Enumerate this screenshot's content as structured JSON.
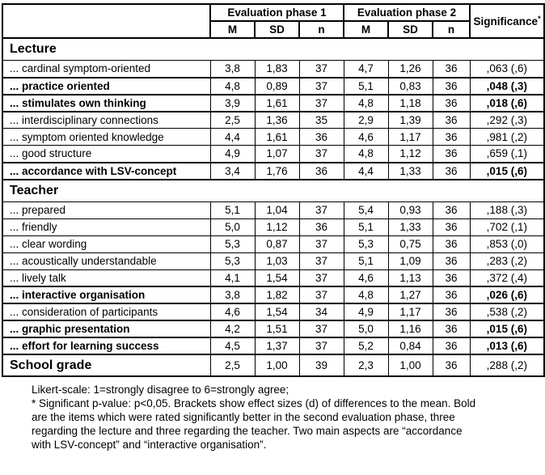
{
  "table": {
    "header": {
      "phase1": "Evaluation phase 1",
      "phase2": "Evaluation phase 2",
      "significance": "Significance",
      "significance_sup": "*",
      "subcols": [
        "M",
        "SD",
        "n",
        "M",
        "SD",
        "n"
      ]
    },
    "sections": [
      {
        "title": "Lecture",
        "rows": [
          {
            "label": "... cardinal symptom-oriented",
            "m1": "3,8",
            "sd1": "1,83",
            "n1": "37",
            "m2": "4,7",
            "sd2": "1,26",
            "n2": "36",
            "sig": ",063 (,6)",
            "bold": false
          },
          {
            "label": "... practice oriented",
            "m1": "4,8",
            "sd1": "0,89",
            "n1": "37",
            "m2": "5,1",
            "sd2": "0,83",
            "n2": "36",
            "sig": ",048 (,3)",
            "bold": true
          },
          {
            "label": "... stimulates own thinking",
            "m1": "3,9",
            "sd1": "1,61",
            "n1": "37",
            "m2": "4,8",
            "sd2": "1,18",
            "n2": "36",
            "sig": ",018 (,6)",
            "bold": true
          },
          {
            "label": "... interdisciplinary connections",
            "m1": "2,5",
            "sd1": "1,36",
            "n1": "35",
            "m2": "2,9",
            "sd2": "1,39",
            "n2": "36",
            "sig": ",292 (,3)",
            "bold": false
          },
          {
            "label": "... symptom oriented knowledge",
            "m1": "4,4",
            "sd1": "1,61",
            "n1": "36",
            "m2": "4,6",
            "sd2": "1,17",
            "n2": "36",
            "sig": ",981 (,2)",
            "bold": false
          },
          {
            "label": "... good structure",
            "m1": "4,9",
            "sd1": "1,07",
            "n1": "37",
            "m2": "4,8",
            "sd2": "1,12",
            "n2": "36",
            "sig": ",659 (,1)",
            "bold": false
          },
          {
            "label": "... accordance with LSV-concept",
            "m1": "3,4",
            "sd1": "1,76",
            "n1": "36",
            "m2": "4,4",
            "sd2": "1,33",
            "n2": "36",
            "sig": ",015 (,6)",
            "bold": true
          }
        ]
      },
      {
        "title": "Teacher",
        "rows": [
          {
            "label": "... prepared",
            "m1": "5,1",
            "sd1": "1,04",
            "n1": "37",
            "m2": "5,4",
            "sd2": "0,93",
            "n2": "36",
            "sig": ",188 (,3)",
            "bold": false
          },
          {
            "label": "... friendly",
            "m1": "5,0",
            "sd1": "1,12",
            "n1": "36",
            "m2": "5,1",
            "sd2": "1,33",
            "n2": "36",
            "sig": ",702 (,1)",
            "bold": false
          },
          {
            "label": "... clear wording",
            "m1": "5,3",
            "sd1": "0,87",
            "n1": "37",
            "m2": "5,3",
            "sd2": "0,75",
            "n2": "36",
            "sig": ",853 (,0)",
            "bold": false
          },
          {
            "label": "... acoustically understandable",
            "m1": "5,3",
            "sd1": "1,03",
            "n1": "37",
            "m2": "5,1",
            "sd2": "1,09",
            "n2": "36",
            "sig": ",283 (,2)",
            "bold": false
          },
          {
            "label": "... lively talk",
            "m1": "4,1",
            "sd1": "1,54",
            "n1": "37",
            "m2": "4,6",
            "sd2": "1,13",
            "n2": "36",
            "sig": ",372 (,4)",
            "bold": false
          },
          {
            "label": "... interactive organisation",
            "m1": "3,8",
            "sd1": "1,82",
            "n1": "37",
            "m2": "4,8",
            "sd2": "1,27",
            "n2": "36",
            "sig": ",026 (,6)",
            "bold": true
          },
          {
            "label": "... consideration of participants",
            "m1": "4,6",
            "sd1": "1,54",
            "n1": "34",
            "m2": "4,9",
            "sd2": "1,17",
            "n2": "36",
            "sig": ",538 (,2)",
            "bold": false
          },
          {
            "label": "... graphic presentation",
            "m1": "4,2",
            "sd1": "1,51",
            "n1": "37",
            "m2": "5,0",
            "sd2": "1,16",
            "n2": "36",
            "sig": ",015 (,6)",
            "bold": true
          },
          {
            "label": "... effort for learning success",
            "m1": "4,5",
            "sd1": "1,37",
            "n1": "37",
            "m2": "5,2",
            "sd2": "0,84",
            "n2": "36",
            "sig": ",013 (,6)",
            "bold": true
          }
        ]
      }
    ],
    "school_grade": {
      "label": "School grade",
      "m1": "2,5",
      "sd1": "1,00",
      "n1": "39",
      "m2": "2,3",
      "sd2": "1,00",
      "n2": "36",
      "sig": ",288 (,2)"
    }
  },
  "footnote": {
    "lines": [
      "Likert-scale: 1=strongly disagree to 6=strongly agree;",
      "* Significant p-value: p<0,05. Brackets show effect sizes (d) of differences to the mean. Bold",
      "are the items which were rated significantly better in the second evaluation phase, three",
      "regarding the lecture and three regarding the teacher. Two main aspects are “accordance",
      "with LSV-concept” and “interactive organisation”."
    ]
  }
}
